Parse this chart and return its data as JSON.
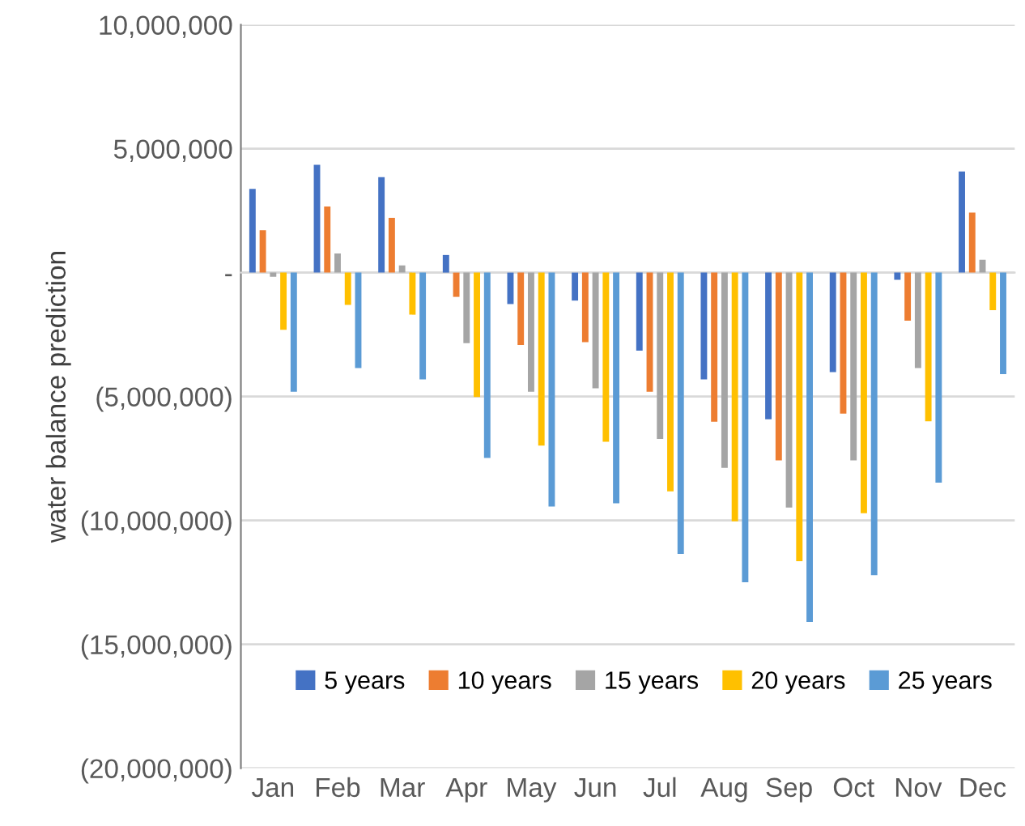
{
  "chart_data": {
    "type": "bar",
    "ylabel": "water balance prediction",
    "categories": [
      "Jan",
      "Feb",
      "Mar",
      "Apr",
      "May",
      "Jun",
      "Jul",
      "Aug",
      "Sep",
      "Oct",
      "Nov",
      "Dec"
    ],
    "series": [
      {
        "name": "5 years",
        "color": "#4472c4",
        "values": [
          3380000,
          4350000,
          3850000,
          710000,
          -1270000,
          -1130000,
          -3150000,
          -4310000,
          -5920000,
          -4020000,
          -290000,
          4080000
        ]
      },
      {
        "name": "10 years",
        "color": "#ed7d31",
        "values": [
          1710000,
          2670000,
          2210000,
          -980000,
          -2920000,
          -2810000,
          -4810000,
          -6020000,
          -7580000,
          -5690000,
          -1940000,
          2420000
        ]
      },
      {
        "name": "15 years",
        "color": "#a5a5a5",
        "values": [
          -170000,
          770000,
          290000,
          -2850000,
          -4810000,
          -4670000,
          -6710000,
          -7880000,
          -9480000,
          -7580000,
          -3850000,
          520000
        ]
      },
      {
        "name": "20 years",
        "color": "#ffc000",
        "values": [
          -2310000,
          -1300000,
          -1700000,
          -5020000,
          -6980000,
          -6830000,
          -8830000,
          -10040000,
          -11650000,
          -9710000,
          -6000000,
          -1520000
        ]
      },
      {
        "name": "25 years",
        "color": "#5b9bd5",
        "values": [
          -4810000,
          -3850000,
          -4310000,
          -7480000,
          -9440000,
          -9310000,
          -11350000,
          -12500000,
          -14100000,
          -12210000,
          -8480000,
          -4100000
        ]
      }
    ],
    "ylim": [
      -20000000,
      10000000
    ],
    "yticks": [
      {
        "value": -20000000,
        "label": "(20,000,000)"
      },
      {
        "value": -15000000,
        "label": "(15,000,000)"
      },
      {
        "value": -10000000,
        "label": "(10,000,000)"
      },
      {
        "value": -5000000,
        "label": "(5,000,000)"
      },
      {
        "value": 0,
        "label": "-"
      },
      {
        "value": 5000000,
        "label": "5,000,000"
      },
      {
        "value": 10000000,
        "label": "10,000,000"
      }
    ],
    "grid": "y",
    "legend": "bottom right"
  }
}
